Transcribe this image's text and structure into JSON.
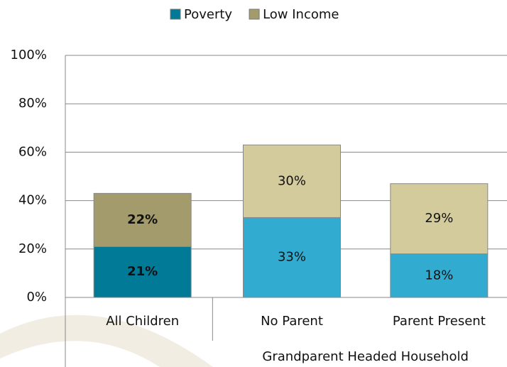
{
  "chart_data": {
    "type": "stacked_bar",
    "categories": [
      "All Children",
      "No Parent",
      "Parent Present"
    ],
    "group_label": "Grandparent Headed Household",
    "series": [
      {
        "name": "Poverty",
        "color": "#007a96",
        "colors": [
          "#007a96",
          "#31acd0",
          "#31acd0"
        ],
        "values": [
          21,
          33,
          18
        ],
        "value_labels": [
          "21%",
          "33%",
          "18%"
        ]
      },
      {
        "name": "Low Income",
        "color": "#a39b6b",
        "colors": [
          "#a39b6b",
          "#d3cb9c",
          "#d3cb9c"
        ],
        "values": [
          22,
          30,
          29
        ],
        "value_labels": [
          "22%",
          "30%",
          "29%"
        ]
      }
    ],
    "emphasis": [
      true,
      false,
      false
    ],
    "ylim": [
      0,
      100
    ],
    "yticks": [
      {
        "value": 0,
        "label": "0%"
      },
      {
        "value": 20,
        "label": "20%"
      },
      {
        "value": 40,
        "label": "40%"
      },
      {
        "value": 60,
        "label": "60%"
      },
      {
        "value": 80,
        "label": "80%"
      },
      {
        "value": 100,
        "label": "100%"
      }
    ],
    "grid": true,
    "legend": "top"
  }
}
